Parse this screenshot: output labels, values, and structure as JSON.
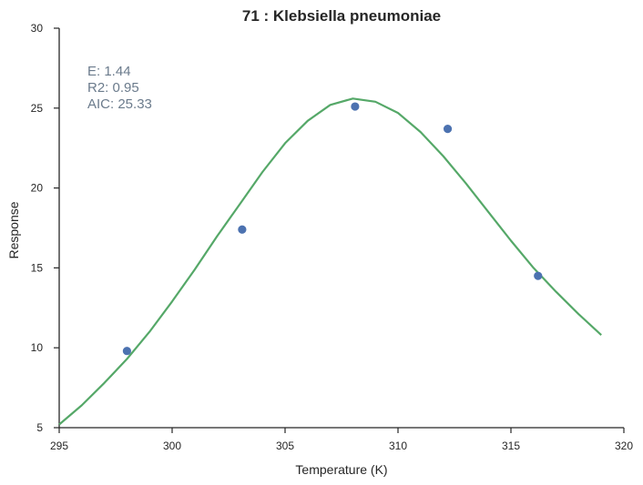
{
  "chart_data": {
    "type": "scatter",
    "title": "71 : Klebsiella pneumoniae",
    "xlabel": "Temperature (K)",
    "ylabel": "Response",
    "xlim": [
      295,
      320
    ],
    "ylim": [
      5,
      30
    ],
    "xticks": [
      295,
      300,
      305,
      310,
      315,
      320
    ],
    "yticks": [
      5,
      10,
      15,
      20,
      25,
      30
    ],
    "grid": false,
    "points": [
      {
        "x": 298.0,
        "y": 9.8
      },
      {
        "x": 303.1,
        "y": 17.4
      },
      {
        "x": 308.1,
        "y": 25.1
      },
      {
        "x": 312.2,
        "y": 23.7
      },
      {
        "x": 316.2,
        "y": 14.5
      }
    ],
    "fit_curve": [
      {
        "x": 295.0,
        "y": 5.2
      },
      {
        "x": 296.0,
        "y": 6.4
      },
      {
        "x": 297.0,
        "y": 7.8
      },
      {
        "x": 298.0,
        "y": 9.3
      },
      {
        "x": 299.0,
        "y": 11.0
      },
      {
        "x": 300.0,
        "y": 12.9
      },
      {
        "x": 301.0,
        "y": 14.9
      },
      {
        "x": 302.0,
        "y": 17.0
      },
      {
        "x": 303.0,
        "y": 19.0
      },
      {
        "x": 304.0,
        "y": 21.0
      },
      {
        "x": 305.0,
        "y": 22.8
      },
      {
        "x": 306.0,
        "y": 24.2
      },
      {
        "x": 307.0,
        "y": 25.2
      },
      {
        "x": 308.0,
        "y": 25.6
      },
      {
        "x": 309.0,
        "y": 25.4
      },
      {
        "x": 310.0,
        "y": 24.7
      },
      {
        "x": 311.0,
        "y": 23.5
      },
      {
        "x": 312.0,
        "y": 22.0
      },
      {
        "x": 313.0,
        "y": 20.3
      },
      {
        "x": 314.0,
        "y": 18.5
      },
      {
        "x": 315.0,
        "y": 16.7
      },
      {
        "x": 316.0,
        "y": 15.0
      },
      {
        "x": 317.0,
        "y": 13.5
      },
      {
        "x": 318.0,
        "y": 12.1
      },
      {
        "x": 319.0,
        "y": 10.8
      }
    ],
    "colors": {
      "points": "#4c72b0",
      "curve": "#55a868",
      "axis": "#262626",
      "annotation": "#6b7b8c"
    },
    "annotations": [
      "E:  1.44",
      "R2:  0.95",
      "AIC: 25.33"
    ]
  }
}
